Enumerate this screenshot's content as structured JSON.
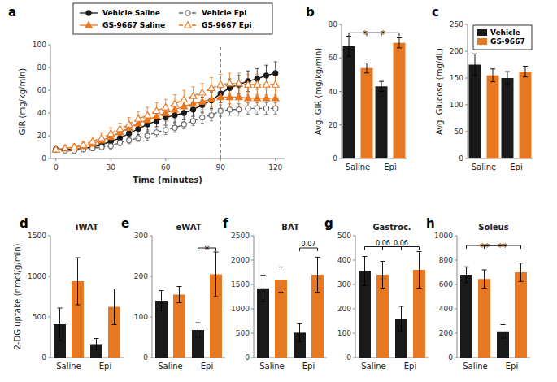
{
  "chart_data": [
    {
      "type": "line",
      "x": [
        0,
        5,
        10,
        15,
        20,
        25,
        30,
        35,
        40,
        45,
        50,
        55,
        60,
        65,
        70,
        75,
        80,
        85,
        90,
        95,
        100,
        105,
        110,
        115,
        120
      ],
      "series": [
        {
          "name": "Vehicle Saline",
          "color": "#1a1a1a",
          "marker": "circle",
          "line_style": "solid",
          "values": [
            8,
            8,
            8,
            9,
            10,
            12,
            15,
            18,
            22,
            26,
            30,
            33,
            36,
            38,
            40,
            43,
            47,
            51,
            57,
            62,
            65,
            68,
            70,
            73,
            75
          ],
          "errors": [
            2,
            2,
            2,
            2,
            2,
            3,
            3,
            4,
            4,
            5,
            5,
            5,
            6,
            6,
            6,
            6,
            7,
            7,
            8,
            8,
            8,
            9,
            9,
            9,
            10
          ]
        },
        {
          "name": "Vehicle Epi",
          "color": "#666666",
          "marker": "open-circle",
          "line_style": "dashed",
          "values": [
            8,
            7,
            7,
            8,
            9,
            10,
            11,
            14,
            16,
            18,
            20,
            23,
            25,
            27,
            30,
            33,
            36,
            38,
            42,
            43,
            43,
            44,
            44,
            44,
            44
          ],
          "errors": [
            2,
            2,
            2,
            2,
            2,
            2,
            3,
            3,
            3,
            3,
            4,
            4,
            4,
            4,
            4,
            4,
            5,
            5,
            5,
            5,
            5,
            5,
            5,
            5,
            5
          ]
        },
        {
          "name": "GS-9667 Saline",
          "color": "#E87722",
          "marker": "triangle",
          "line_style": "solid",
          "values": [
            8,
            9,
            10,
            11,
            13,
            16,
            19,
            23,
            27,
            31,
            34,
            37,
            40,
            43,
            46,
            48,
            50,
            52,
            54,
            54,
            54,
            53,
            53,
            53,
            53
          ],
          "errors": [
            2,
            2,
            2,
            3,
            3,
            4,
            4,
            5,
            5,
            6,
            6,
            6,
            7,
            7,
            7,
            7,
            7,
            7,
            8,
            8,
            8,
            8,
            8,
            8,
            8
          ]
        },
        {
          "name": "GS-9667 Epi",
          "color": "#E87722",
          "marker": "open-triangle",
          "line_style": "dashed",
          "values": [
            8,
            9,
            10,
            12,
            15,
            18,
            22,
            26,
            30,
            35,
            38,
            42,
            45,
            48,
            52,
            55,
            58,
            62,
            65,
            66,
            66,
            65,
            65,
            65,
            65
          ],
          "errors": [
            2,
            2,
            3,
            3,
            4,
            4,
            5,
            5,
            6,
            6,
            7,
            7,
            7,
            8,
            8,
            8,
            8,
            9,
            9,
            9,
            9,
            9,
            9,
            9,
            9
          ]
        }
      ],
      "xlim": [
        -3,
        125
      ],
      "ylim": [
        0,
        100
      ],
      "xticks": [
        0,
        30,
        60,
        90,
        120
      ],
      "yticks": [
        0,
        20,
        40,
        60,
        80,
        100
      ],
      "xlabel": "Time (minutes)",
      "ylabel": "GIR (mg/kg/min)",
      "legend": "top",
      "annotations": [
        {
          "type": "label",
          "text": "a"
        },
        {
          "type": "vline",
          "x": 90
        }
      ]
    },
    {
      "type": "bar",
      "categories": [
        "Saline",
        "Epi"
      ],
      "series": [
        {
          "color": "#1a1a1a",
          "values": [
            67,
            43
          ],
          "errors": [
            6,
            3
          ]
        },
        {
          "color": "#E87722",
          "values": [
            54,
            69
          ],
          "errors": [
            3,
            3
          ]
        }
      ],
      "ylim": [
        0,
        80
      ],
      "yticks": [
        0,
        20,
        40,
        60,
        80
      ],
      "ylabel": "Avg. GIR (mg/kg/min)",
      "annotations": [
        {
          "type": "label",
          "text": "b"
        },
        {
          "type": "bracket",
          "text": "*",
          "y": 75,
          "from": {
            "series": 0,
            "category": 0
          },
          "to": {
            "series": 0,
            "category": 1
          }
        },
        {
          "type": "bracket",
          "text": "*",
          "y": 75,
          "from": {
            "series": 1,
            "category": 0
          },
          "to": {
            "series": 1,
            "category": 1
          }
        }
      ]
    },
    {
      "type": "bar",
      "categories": [
        "Saline",
        "Epi"
      ],
      "series": [
        {
          "name": "Vehicle",
          "color": "#1a1a1a",
          "values": [
            175,
            150
          ],
          "errors": [
            20,
            12
          ]
        },
        {
          "name": "GS-9667",
          "color": "#E87722",
          "values": [
            155,
            162
          ],
          "errors": [
            12,
            10
          ]
        }
      ],
      "ylim": [
        0,
        250
      ],
      "yticks": [
        0,
        50,
        100,
        150,
        200,
        250
      ],
      "ylabel": "Avg. Glucose (mg/dL)",
      "legend": "upper right",
      "annotations": [
        {
          "type": "label",
          "text": "c"
        }
      ]
    },
    {
      "type": "bar",
      "title": "iWAT",
      "categories": [
        "Saline",
        "Epi"
      ],
      "series": [
        {
          "color": "#1a1a1a",
          "values": [
            410,
            165
          ],
          "errors": [
            200,
            70
          ]
        },
        {
          "color": "#E87722",
          "values": [
            940,
            625
          ],
          "errors": [
            290,
            220
          ]
        }
      ],
      "ylim": [
        0,
        1500
      ],
      "yticks": [
        0,
        500,
        1000,
        1500
      ],
      "ylabel": "2-DG uptake (nmol/g/min)",
      "annotations": [
        {
          "type": "label",
          "text": "d"
        }
      ]
    },
    {
      "type": "bar",
      "title": "eWAT",
      "categories": [
        "Saline",
        "Epi"
      ],
      "series": [
        {
          "color": "#1a1a1a",
          "values": [
            140,
            68
          ],
          "errors": [
            25,
            18
          ]
        },
        {
          "color": "#E87722",
          "values": [
            155,
            205
          ],
          "errors": [
            20,
            55
          ]
        }
      ],
      "ylim": [
        0,
        300
      ],
      "yticks": [
        0,
        100,
        200,
        300
      ],
      "annotations": [
        {
          "type": "label",
          "text": "e"
        },
        {
          "type": "bracket",
          "text": "*",
          "y": 270,
          "from": {
            "series": 0,
            "category": 1
          },
          "to": {
            "series": 1,
            "category": 1
          }
        }
      ]
    },
    {
      "type": "bar",
      "title": "BAT",
      "categories": [
        "Saline",
        "Epi"
      ],
      "series": [
        {
          "color": "#1a1a1a",
          "values": [
            1420,
            510
          ],
          "errors": [
            270,
            180
          ]
        },
        {
          "color": "#E87722",
          "values": [
            1600,
            1700
          ],
          "errors": [
            260,
            360
          ]
        }
      ],
      "ylim": [
        0,
        2500
      ],
      "yticks": [
        0,
        500,
        1000,
        1500,
        2000,
        2500
      ],
      "annotations": [
        {
          "type": "label",
          "text": "f"
        },
        {
          "type": "bracket",
          "text": "0.07",
          "y": 2250,
          "from": {
            "series": 0,
            "category": 1
          },
          "to": {
            "series": 1,
            "category": 1
          }
        }
      ]
    },
    {
      "type": "bar",
      "title": "Gastroc.",
      "categories": [
        "Saline",
        "Epi"
      ],
      "series": [
        {
          "color": "#1a1a1a",
          "values": [
            355,
            160
          ],
          "errors": [
            60,
            50
          ]
        },
        {
          "color": "#E87722",
          "values": [
            340,
            360
          ],
          "errors": [
            55,
            75
          ]
        }
      ],
      "ylim": [
        0,
        500
      ],
      "yticks": [
        0,
        100,
        200,
        300,
        400,
        500
      ],
      "annotations": [
        {
          "type": "label",
          "text": "g"
        },
        {
          "type": "bracket",
          "text": "0.06",
          "y": 455,
          "from": {
            "series": 0,
            "category": 0
          },
          "to": {
            "series": 0,
            "category": 1
          }
        },
        {
          "type": "bracket",
          "text": "0.06",
          "y": 455,
          "from": {
            "series": 1,
            "category": 0
          },
          "to": {
            "series": 1,
            "category": 1
          }
        }
      ]
    },
    {
      "type": "bar",
      "title": "Soleus",
      "categories": [
        "Saline",
        "Epi"
      ],
      "series": [
        {
          "color": "#1a1a1a",
          "values": [
            680,
            215
          ],
          "errors": [
            65,
            55
          ]
        },
        {
          "color": "#E87722",
          "values": [
            645,
            700
          ],
          "errors": [
            75,
            75
          ]
        }
      ],
      "ylim": [
        0,
        1000
      ],
      "yticks": [
        0,
        200,
        400,
        600,
        800,
        1000
      ],
      "annotations": [
        {
          "type": "label",
          "text": "h"
        },
        {
          "type": "bracket",
          "text": "**",
          "y": 920,
          "from": {
            "series": 0,
            "category": 0
          },
          "to": {
            "series": 0,
            "category": 1
          }
        },
        {
          "type": "bracket",
          "text": "**",
          "y": 920,
          "from": {
            "series": 1,
            "category": 0
          },
          "to": {
            "series": 1,
            "category": 1
          }
        }
      ]
    }
  ]
}
